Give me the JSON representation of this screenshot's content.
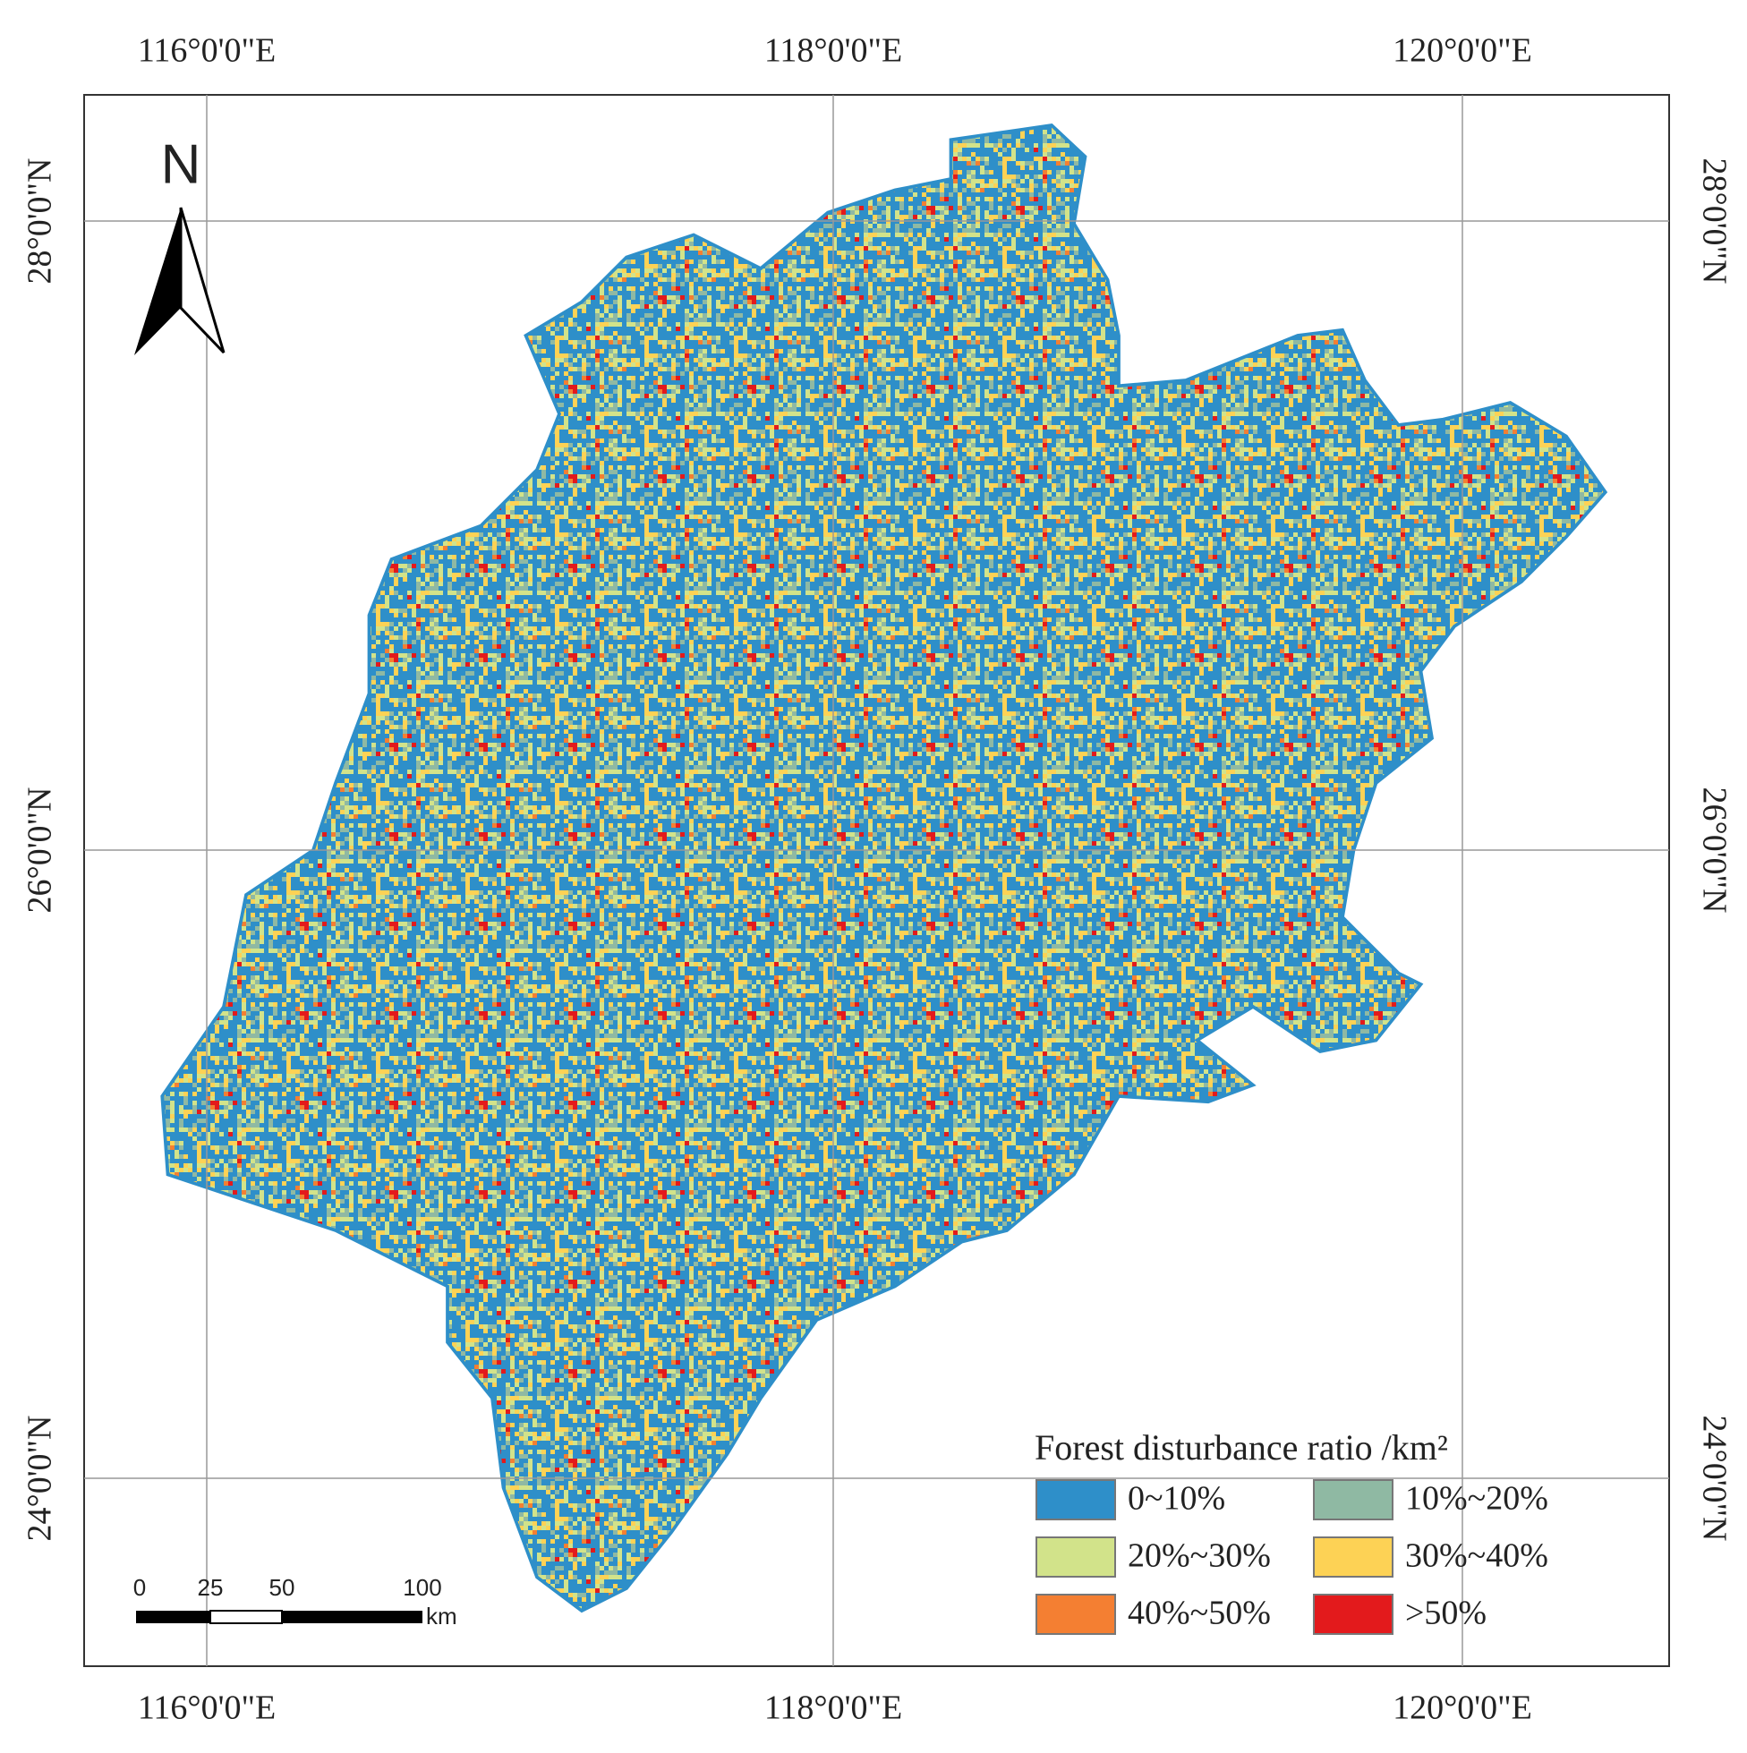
{
  "graticule": {
    "top_labels": [
      "116°0'0\"E",
      "118°0'0\"E",
      "120°0'0\"E"
    ],
    "bottom_labels": [
      "116°0'0\"E",
      "118°0'0\"E",
      "120°0'0\"E"
    ],
    "left_labels": [
      "28°0'0\"N",
      "26°0'0\"N",
      "24°0'0\"N"
    ],
    "right_labels": [
      "28°0'0\"N",
      "26°0'0\"N",
      "24°0'0\"N"
    ]
  },
  "north_arrow": "N",
  "scale_bar": {
    "labels": [
      "0",
      "25",
      "50",
      "100"
    ],
    "unit": "km"
  },
  "legend": {
    "title": "Forest disturbance ratio /km²",
    "items": [
      {
        "label": "0~10%",
        "color": "#2e8fc9"
      },
      {
        "label": "10%~20%",
        "color": "#8fb9a3"
      },
      {
        "label": "20%~30%",
        "color": "#d2e38a"
      },
      {
        "label": "30%~40%",
        "color": "#fdd255"
      },
      {
        "label": "40%~50%",
        "color": "#f47f32"
      },
      {
        "label": ">50%",
        "color": "#e31a1c"
      }
    ]
  }
}
